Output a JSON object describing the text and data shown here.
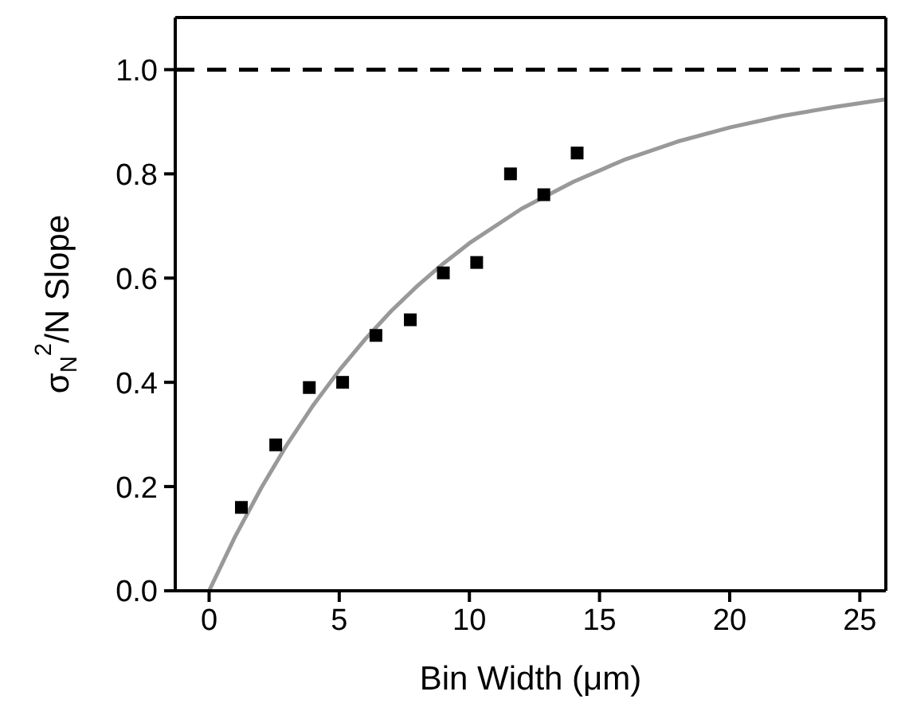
{
  "chart_data": {
    "type": "scatter",
    "xlabel": "Bin Width (μm)",
    "ylabel": "σ$_{N}$$^{2}$/N Slope",
    "xlim": [
      -1.3,
      26
    ],
    "xticks": [
      0,
      5,
      10,
      15,
      20,
      25
    ],
    "ylim": [
      0,
      1.1
    ],
    "yticks": [
      {
        "value": 0,
        "label": "0.0"
      },
      0.2,
      0.4,
      0.6,
      0.8,
      {
        "value": 1,
        "label": "1.0"
      }
    ],
    "marker": "square",
    "ref_lines": [
      {
        "axis": "y",
        "value": 1,
        "color": "#000000",
        "line_style": "dashed"
      }
    ],
    "series": [
      {
        "color": "#000000",
        "x": [
          1.24,
          2.56,
          3.85,
          5.13,
          6.41,
          7.73,
          9.0,
          10.28,
          11.58,
          12.86,
          14.14
        ],
        "values": [
          0.16,
          0.28,
          0.39,
          0.4,
          0.49,
          0.52,
          0.61,
          0.63,
          0.8,
          0.76,
          0.84
        ]
      },
      {
        "type": "line",
        "color": "#999999",
        "marker": "none",
        "x": [
          0,
          1,
          2,
          3,
          4,
          5,
          6,
          7,
          8,
          9,
          10,
          12,
          14,
          16,
          18,
          20,
          22,
          24,
          26
        ],
        "values": [
          0,
          0.104,
          0.197,
          0.281,
          0.356,
          0.423,
          0.483,
          0.537,
          0.585,
          0.628,
          0.667,
          0.733,
          0.785,
          0.828,
          0.862,
          0.889,
          0.911,
          0.928,
          0.943
        ]
      }
    ]
  }
}
